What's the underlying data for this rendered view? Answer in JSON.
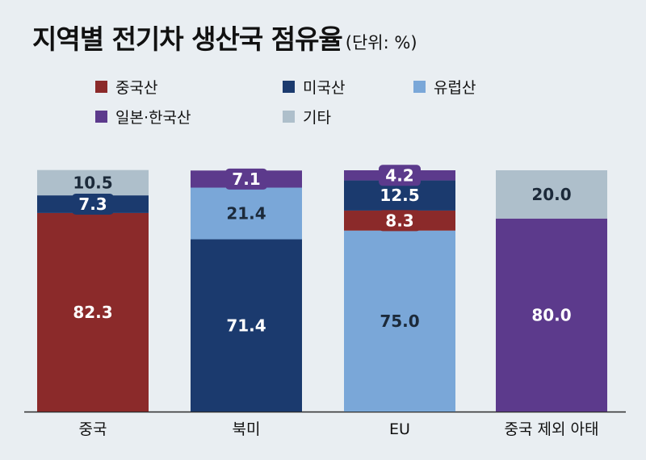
{
  "title": "지역별 전기차 생산국 점유율",
  "unit": "(단위: %)",
  "chart_data": {
    "type": "bar",
    "stacked": true,
    "orientation": "vertical",
    "categories": [
      "중국",
      "북미",
      "EU",
      "중국 제외 아태"
    ],
    "series": [
      {
        "name": "중국산",
        "color": "#8b2a2a",
        "values": [
          82.3,
          null,
          8.3,
          null
        ]
      },
      {
        "name": "미국산",
        "color": "#1b3a6e",
        "values": [
          7.3,
          71.4,
          12.5,
          null
        ]
      },
      {
        "name": "유럽산",
        "color": "#7aa7d8",
        "values": [
          null,
          21.4,
          75.0,
          null
        ]
      },
      {
        "name": "일본·한국산",
        "color": "#5c3a8c",
        "values": [
          null,
          7.1,
          4.2,
          80.0
        ]
      },
      {
        "name": "기타",
        "color": "#aebfcb",
        "values": [
          10.5,
          null,
          null,
          20.0
        ]
      }
    ],
    "stack_order_bottom_to_top": [
      [
        "중국산",
        "미국산",
        "기타"
      ],
      [
        "미국산",
        "유럽산",
        "일본·한국산"
      ],
      [
        "유럽산",
        "중국산",
        "미국산",
        "일본·한국산"
      ],
      [
        "일본·한국산",
        "기타"
      ]
    ],
    "data_labels": [
      [
        "82.3",
        "7.3",
        "10.5"
      ],
      [
        "71.4",
        "21.4",
        "7.1"
      ],
      [
        "75.0",
        "8.3",
        "12.5",
        "4.2"
      ],
      [
        "80.0",
        "20.0"
      ]
    ],
    "ylim": [
      0,
      100
    ],
    "legend_position": "top",
    "grid": false
  }
}
